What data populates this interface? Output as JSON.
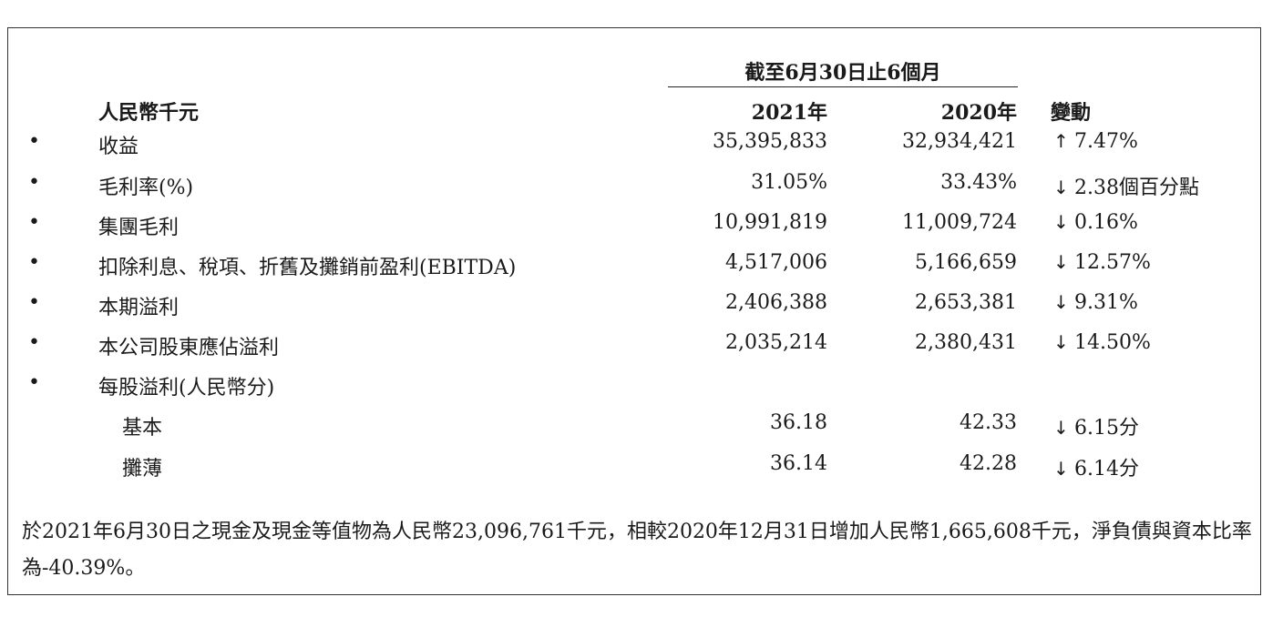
{
  "table": {
    "period_header": "截至6月30日止6個月",
    "unit_label": "人民幣千元",
    "col_2021": "2021年",
    "col_2020": "2020年",
    "col_change": "變動",
    "bullet_glyph": "•",
    "arrow_up": "↑",
    "arrow_down": "↓",
    "rows": [
      {
        "label": "收益",
        "v2021": "35,395,833",
        "v2020": "32,934,421",
        "direction": "up",
        "change": "7.47%"
      },
      {
        "label": "毛利率(%)",
        "v2021": "31.05%",
        "v2020": "33.43%",
        "direction": "down",
        "change": "2.38個百分點"
      },
      {
        "label": "集團毛利",
        "v2021": "10,991,819",
        "v2020": "11,009,724",
        "direction": "down",
        "change": "0.16%"
      },
      {
        "label": "扣除利息、稅項、折舊及攤銷前盈利(EBITDA)",
        "v2021": "4,517,006",
        "v2020": "5,166,659",
        "direction": "down",
        "change": "12.57%"
      },
      {
        "label": "本期溢利",
        "v2021": "2,406,388",
        "v2020": "2,653,381",
        "direction": "down",
        "change": "9.31%"
      },
      {
        "label": "本公司股東應佔溢利",
        "v2021": "2,035,214",
        "v2020": "2,380,431",
        "direction": "down",
        "change": "14.50%"
      },
      {
        "label": "每股溢利(人民幣分)",
        "v2021": "",
        "v2020": "",
        "direction": "",
        "change": ""
      }
    ],
    "sub_rows": [
      {
        "label": "基本",
        "v2021": "36.18",
        "v2020": "42.33",
        "direction": "down",
        "change": "6.15分"
      },
      {
        "label": "攤薄",
        "v2021": "36.14",
        "v2020": "42.28",
        "direction": "down",
        "change": "6.14分"
      }
    ]
  },
  "footnote": {
    "text": "於2021年6月30日之現金及現金等值物為人民幣23,096,761千元，相較2020年12月31日增加人民幣1,665,608千元，淨負債與資本比率為-40.39%。"
  }
}
